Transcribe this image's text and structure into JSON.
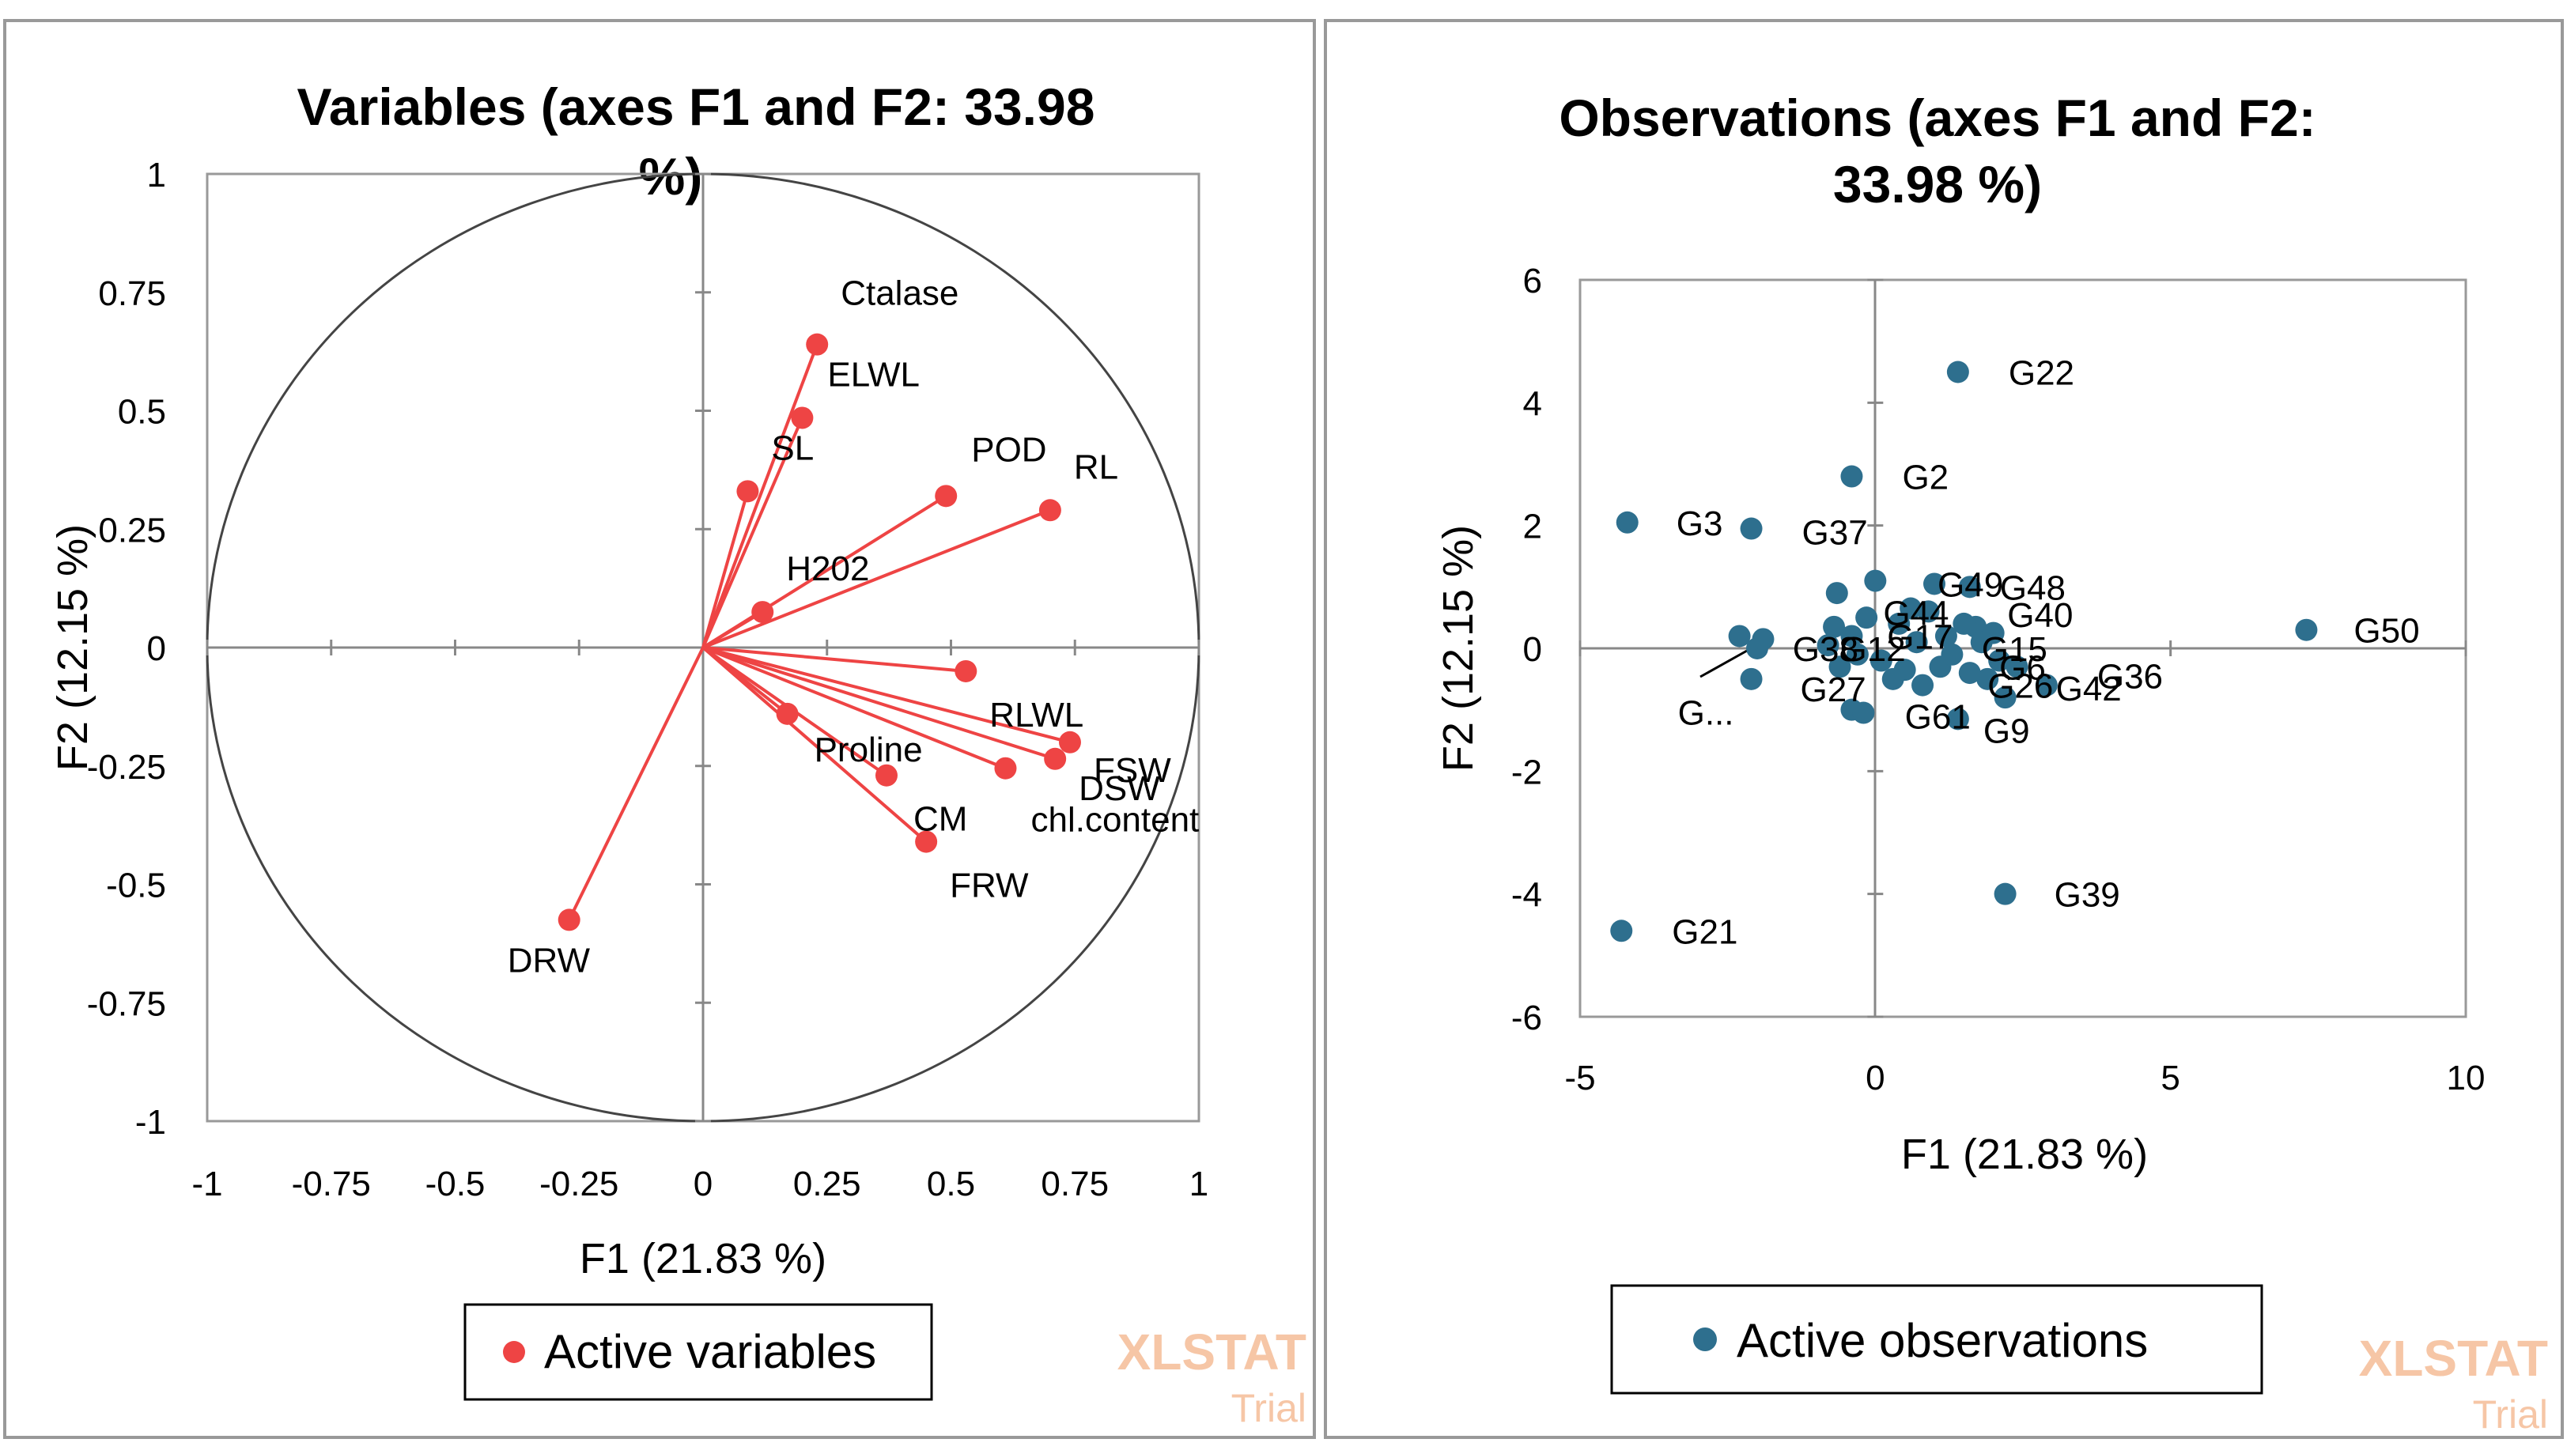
{
  "chart_data": [
    {
      "type": "scatter",
      "title": "Variables (axes F1 and F2: 33.98 %)",
      "title_lines": [
        "Variables (axes F1 and F2: 33.98",
        "%)"
      ],
      "xlabel": "F1 (21.83 %)",
      "ylabel": "F2 (12.15 %)",
      "xlim": [
        -1,
        1
      ],
      "ylim": [
        -1,
        1
      ],
      "x_ticks": [
        "-1",
        "-0.75",
        "-0.5",
        "-0.25",
        "0",
        "0.25",
        "0.5",
        "0.75",
        "1"
      ],
      "y_ticks": [
        "1",
        "0.75",
        "0.5",
        "0.25",
        "0",
        "-0.25",
        "-0.5",
        "-0.75",
        "-1"
      ],
      "correlation_circle": true,
      "legend": "Active variables",
      "color": "#ee4444",
      "points": [
        {
          "label": "Ctalase",
          "x": 0.23,
          "y": 0.64
        },
        {
          "label": "ELWL",
          "x": 0.2,
          "y": 0.485
        },
        {
          "label": "SL",
          "x": 0.09,
          "y": 0.33
        },
        {
          "label": "POD",
          "x": 0.49,
          "y": 0.32
        },
        {
          "label": "RL",
          "x": 0.7,
          "y": 0.29
        },
        {
          "label": "H202",
          "x": 0.12,
          "y": 0.075
        },
        {
          "label": "RLWL",
          "x": 0.53,
          "y": -0.05
        },
        {
          "label": "Proline",
          "x": 0.17,
          "y": -0.14
        },
        {
          "label": "CM",
          "x": 0.37,
          "y": -0.27
        },
        {
          "label": "FSW",
          "x": 0.74,
          "y": -0.2
        },
        {
          "label": "DSW",
          "x": 0.71,
          "y": -0.235
        },
        {
          "label": "chl.content",
          "x": 0.61,
          "y": -0.255
        },
        {
          "label": "FRW",
          "x": 0.45,
          "y": -0.41
        },
        {
          "label": "DRW",
          "x": -0.27,
          "y": -0.575
        }
      ]
    },
    {
      "type": "scatter",
      "title": "Observations (axes F1 and F2: 33.98 %)",
      "title_lines": [
        "Observations (axes F1 and F2:",
        "33.98 %)"
      ],
      "xlabel": "F1 (21.83 %)",
      "ylabel": "F2 (12.15 %)",
      "xlim": [
        -5,
        10
      ],
      "ylim": [
        -6,
        6
      ],
      "x_ticks": [
        "-5",
        "0",
        "5",
        "10"
      ],
      "y_ticks": [
        "6",
        "4",
        "2",
        "0",
        "-2",
        "-4",
        "-6"
      ],
      "legend": "Active observations",
      "color": "#2e6f8e",
      "points": [
        {
          "label": "G22",
          "x": 1.4,
          "y": 4.5
        },
        {
          "label": "G2",
          "x": -0.4,
          "y": 2.8
        },
        {
          "label": "G3",
          "x": -4.2,
          "y": 2.05
        },
        {
          "label": "G37",
          "x": -2.1,
          "y": 1.95
        },
        {
          "label": "G50",
          "x": 7.3,
          "y": 0.3
        },
        {
          "label": "G39",
          "x": 2.2,
          "y": -4.0
        },
        {
          "label": "G21",
          "x": -4.3,
          "y": -4.6
        },
        {
          "label": "G36",
          "x": 2.9,
          "y": -0.6
        },
        {
          "label": "G42",
          "x": 2.2,
          "y": -0.8
        },
        {
          "label": "G9",
          "x": 1.4,
          "y": -1.15
        },
        {
          "label": "G27",
          "x": -2.1,
          "y": -0.5
        },
        {
          "label": "G49",
          "x": 1.0,
          "y": 1.05
        },
        {
          "label": "G48",
          "x": 1.6,
          "y": 1.0
        },
        {
          "label": "G44",
          "x": 0.0,
          "y": 1.1
        },
        {
          "label": "G40",
          "x": 1.7,
          "y": 0.35
        },
        {
          "label": "G...",
          "x": -2.3,
          "y": 0.2
        },
        {
          "label": "",
          "x": -2.0,
          "y": 0.0
        },
        {
          "label": "",
          "x": -1.9,
          "y": 0.15
        },
        {
          "label": "",
          "x": -0.65,
          "y": 0.9
        },
        {
          "label": "",
          "x": -0.15,
          "y": 0.5
        },
        {
          "label": "",
          "x": -0.7,
          "y": 0.35
        },
        {
          "label": "",
          "x": -0.4,
          "y": 0.2
        },
        {
          "label": "",
          "x": -0.8,
          "y": 0.05
        },
        {
          "label": "",
          "x": -0.3,
          "y": -0.1
        },
        {
          "label": "",
          "x": -0.6,
          "y": -0.3
        },
        {
          "label": "",
          "x": -0.4,
          "y": -1.0
        },
        {
          "label": "",
          "x": -0.2,
          "y": -1.05
        },
        {
          "label": "",
          "x": 0.1,
          "y": -0.2
        },
        {
          "label": "",
          "x": 0.4,
          "y": 0.4
        },
        {
          "label": "",
          "x": 0.5,
          "y": -0.35
        },
        {
          "label": "",
          "x": 0.7,
          "y": 0.1
        },
        {
          "label": "",
          "x": 0.8,
          "y": -0.6
        },
        {
          "label": "",
          "x": 0.9,
          "y": 0.6
        },
        {
          "label": "",
          "x": 1.1,
          "y": -0.3
        },
        {
          "label": "",
          "x": 1.2,
          "y": 0.2
        },
        {
          "label": "",
          "x": 1.3,
          "y": -0.1
        },
        {
          "label": "",
          "x": 1.5,
          "y": 0.4
        },
        {
          "label": "",
          "x": 1.6,
          "y": -0.4
        },
        {
          "label": "",
          "x": 1.8,
          "y": 0.1
        },
        {
          "label": "",
          "x": 1.9,
          "y": -0.5
        },
        {
          "label": "",
          "x": 2.0,
          "y": 0.25
        },
        {
          "label": "",
          "x": 2.1,
          "y": -0.2
        },
        {
          "label": "",
          "x": 2.4,
          "y": -0.3
        },
        {
          "label": "",
          "x": 0.3,
          "y": -0.5
        },
        {
          "label": "",
          "x": 0.6,
          "y": 0.65
        }
      ],
      "overlapping_labels": [
        "G38",
        "G12",
        "G17",
        "G15",
        "G6",
        "G61",
        "G26"
      ]
    }
  ],
  "watermark": {
    "line1": "XLSTAT",
    "line2": "Trial"
  }
}
